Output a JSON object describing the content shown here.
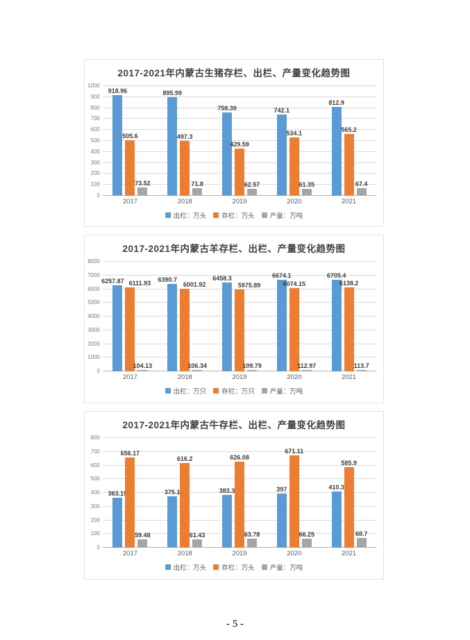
{
  "page": {
    "number_label": "- 5 -"
  },
  "colors": {
    "outturn": "#5B9BD5",
    "inventory": "#ED7D31",
    "production": "#A5A5A5",
    "gridline": "#D9D9D9",
    "axis": "#B3B3B3"
  },
  "chart_data": [
    {
      "type": "bar",
      "title": "2017-2021年内蒙古生猪存栏、出栏、产量变化趋势图",
      "categories": [
        "2017",
        "2018",
        "2019",
        "2020",
        "2021"
      ],
      "series": [
        {
          "name": "出栏：万头",
          "color_key": "outturn",
          "values": [
            918.96,
            895.99,
            758.39,
            742.1,
            812.9
          ]
        },
        {
          "name": "存栏：万头",
          "color_key": "inventory",
          "values": [
            505.6,
            497.3,
            429.59,
            534.1,
            565.2
          ]
        },
        {
          "name": "产量：万吨",
          "color_key": "production",
          "values": [
            73.52,
            71.8,
            62.57,
            61.35,
            67.4
          ]
        }
      ],
      "ylim": [
        0,
        1000
      ],
      "ytick_step": 100,
      "grid": true,
      "legend_position": "bottom"
    },
    {
      "type": "bar",
      "title": "2017-2021年内蒙古羊存栏、出栏、产量变化趋势图",
      "categories": [
        "2017",
        "2018",
        "2019",
        "2020",
        "2021"
      ],
      "series": [
        {
          "name": "出栏：万只",
          "color_key": "outturn",
          "values": [
            6257.87,
            6390.7,
            6458.3,
            6674.1,
            6705.4
          ]
        },
        {
          "name": "存栏：万只",
          "color_key": "inventory",
          "values": [
            6111.93,
            6001.92,
            5975.89,
            6074.15,
            6138.2
          ]
        },
        {
          "name": "产量：万吨",
          "color_key": "production",
          "values": [
            104.13,
            106.34,
            109.79,
            112.97,
            113.7
          ]
        }
      ],
      "ylim": [
        0,
        8000
      ],
      "ytick_step": 1000,
      "grid": true,
      "legend_position": "bottom"
    },
    {
      "type": "bar",
      "title": "2017-2021年内蒙古牛存栏、出栏、产量变化趋势图",
      "categories": [
        "2017",
        "2018",
        "2019",
        "2020",
        "2021"
      ],
      "series": [
        {
          "name": "出栏：万头",
          "color_key": "outturn",
          "values": [
            363.19,
            375.1,
            383.3,
            397,
            410.3
          ]
        },
        {
          "name": "存栏：万头",
          "color_key": "inventory",
          "values": [
            656.17,
            616.2,
            626.08,
            671.11,
            585.9
          ]
        },
        {
          "name": "产量：万吨",
          "color_key": "production",
          "values": [
            59.48,
            61.43,
            63.78,
            66.25,
            68.7
          ]
        }
      ],
      "ylim": [
        0,
        800
      ],
      "ytick_step": 100,
      "grid": true,
      "legend_position": "bottom"
    }
  ]
}
